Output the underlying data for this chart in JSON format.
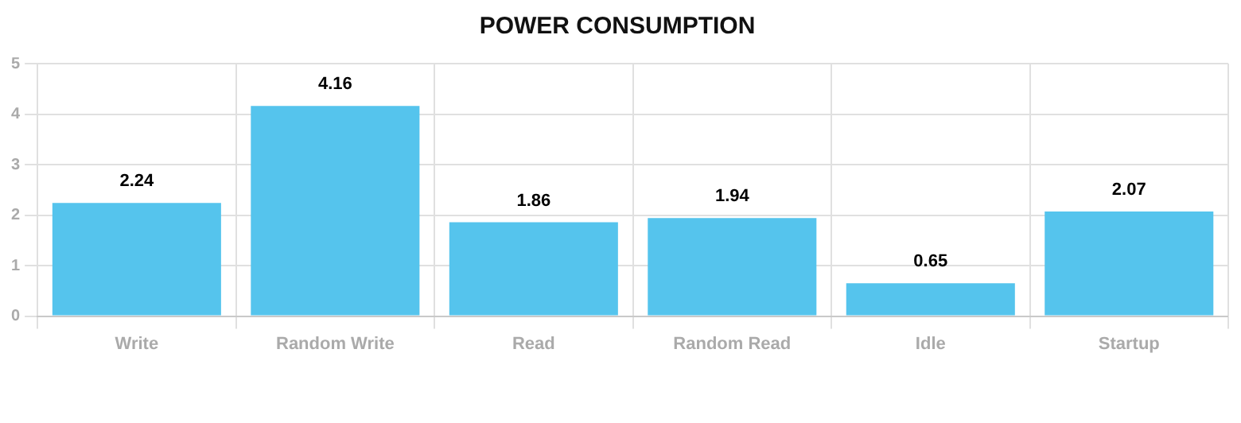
{
  "chart_data": {
    "type": "bar",
    "title": "POWER CONSUMPTION",
    "categories": [
      "Write",
      "Random Write",
      "Read",
      "Random Read",
      "Idle",
      "Startup"
    ],
    "values": [
      2.24,
      4.16,
      1.86,
      1.94,
      0.65,
      2.07
    ],
    "color": "#55c4ed",
    "ylim": [
      0,
      5
    ],
    "yticks": [
      0,
      1,
      2,
      3,
      4,
      5
    ],
    "grid": true,
    "data_labels": true
  }
}
